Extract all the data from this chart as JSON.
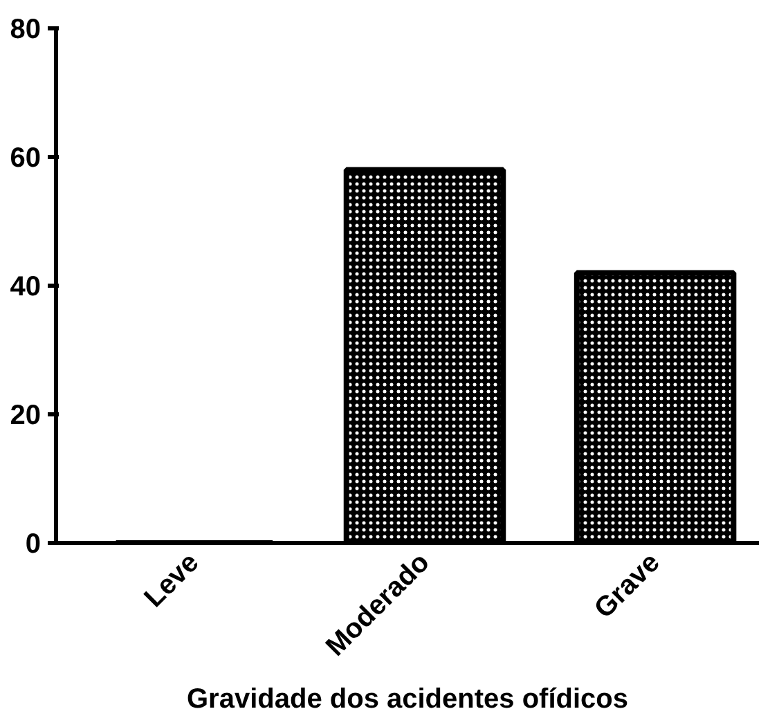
{
  "chart_data": {
    "type": "bar",
    "xlabel": "Gravidade dos acidentes ofídicos",
    "categories": [
      "Leve",
      "Moderado",
      "Grave"
    ],
    "values": [
      0,
      58,
      42
    ],
    "color": "#000000",
    "ylim": [
      0,
      80
    ],
    "yticks": [
      0,
      20,
      40,
      60,
      80
    ],
    "grid": false
  }
}
